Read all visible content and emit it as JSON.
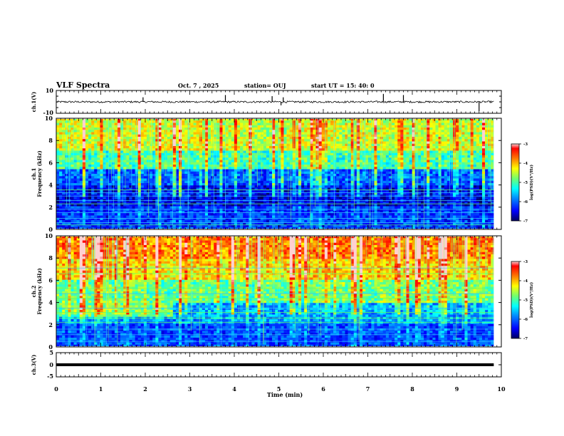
{
  "header": {
    "title": "VLF Spectra",
    "date": "Oct. 7 , 2025",
    "station": "station= OUJ",
    "start": "start UT = 15: 40: 0"
  },
  "colors": {
    "colormap": [
      "#000080",
      "#0000ff",
      "#0080ff",
      "#00ffff",
      "#80ff80",
      "#ffff00",
      "#ff8000",
      "#ff0000",
      "#800000"
    ]
  },
  "chart_data": [
    {
      "type": "line",
      "name": "ch1-waveform",
      "ylabel": "ch.1(V)",
      "ylim": [
        -10,
        10
      ],
      "yticks": [
        "10",
        "-10"
      ],
      "x": [
        0,
        10
      ],
      "values_approx": [
        0,
        0
      ],
      "spike_times": [
        1.95,
        3.8,
        4.85,
        5.05,
        5.1,
        7.35,
        7.8,
        9.5
      ],
      "spike_amp": [
        4,
        6,
        5,
        -3,
        4,
        7,
        6,
        -8
      ]
    },
    {
      "type": "heatmap",
      "name": "ch1-spectrogram",
      "ylabel": "ch.1\nFrequency (kHz)",
      "ylabel_top": "ch.1",
      "ylabel_bottom": "Frequency (kHz)",
      "ylim": [
        0,
        10
      ],
      "yticks": [
        "0",
        "2",
        "4",
        "6",
        "8",
        "10"
      ],
      "xlim": [
        0,
        10
      ],
      "data_end_min": 9.83,
      "colorbar": {
        "label": "log(PSD)(V²/Hz)",
        "range": [
          -7,
          -3
        ],
        "ticks": [
          "-3",
          "-4",
          "-5",
          "-6",
          "-7"
        ]
      },
      "band_levels_log_psd": [
        {
          "f": [
            0,
            2
          ],
          "level": -6.3
        },
        {
          "f": [
            2,
            4
          ],
          "level": -6.6
        },
        {
          "f": [
            4,
            5.5
          ],
          "level": -6.2
        },
        {
          "f": [
            5.5,
            7
          ],
          "level": -5.2
        },
        {
          "f": [
            7,
            10
          ],
          "level": -4.6
        }
      ],
      "persistent_lines_khz": [
        0.4,
        0.6,
        1.0,
        1.5,
        1.8,
        2.3,
        2.6,
        3.0,
        3.3,
        3.55
      ]
    },
    {
      "type": "heatmap",
      "name": "ch2-spectrogram",
      "ylabel": "ch.2\nFrequency (kHz)",
      "ylabel_top": "ch.2",
      "ylabel_bottom": "Frequency (kHz)",
      "ylim": [
        0,
        10
      ],
      "yticks": [
        "0",
        "2",
        "4",
        "6",
        "8",
        "10"
      ],
      "xlim": [
        0,
        10
      ],
      "data_end_min": 9.83,
      "colorbar": {
        "label": "log(PSD)(V²/Hz)",
        "range": [
          -7,
          -3
        ],
        "ticks": [
          "-3",
          "-4",
          "-5",
          "-6",
          "-7"
        ]
      },
      "band_levels_log_psd": [
        {
          "f": [
            0,
            2
          ],
          "level": -6.2
        },
        {
          "f": [
            2,
            4
          ],
          "level": -5.8
        },
        {
          "f": [
            4,
            6
          ],
          "level": -5.0
        },
        {
          "f": [
            6,
            8
          ],
          "level": -4.3
        },
        {
          "f": [
            8,
            10
          ],
          "level": -3.9
        }
      ],
      "persistent_lines_khz": [
        0.5,
        1.1,
        1.6,
        2.2,
        2.6,
        3.1,
        3.5,
        4.4,
        4.8,
        5.3,
        6.6,
        7.1
      ]
    },
    {
      "type": "line",
      "name": "ch3-waveform",
      "ylabel": "ch.3(V)",
      "ylim": [
        -5,
        5
      ],
      "yticks": [
        "5",
        "0",
        "-5"
      ],
      "x": [
        0,
        9.83
      ],
      "values": [
        0,
        0
      ]
    }
  ],
  "xaxis": {
    "label": "Time (min)",
    "ticks": [
      "0",
      "1",
      "2",
      "3",
      "4",
      "5",
      "6",
      "7",
      "8",
      "9",
      "10"
    ],
    "xlim": [
      0,
      10
    ]
  }
}
